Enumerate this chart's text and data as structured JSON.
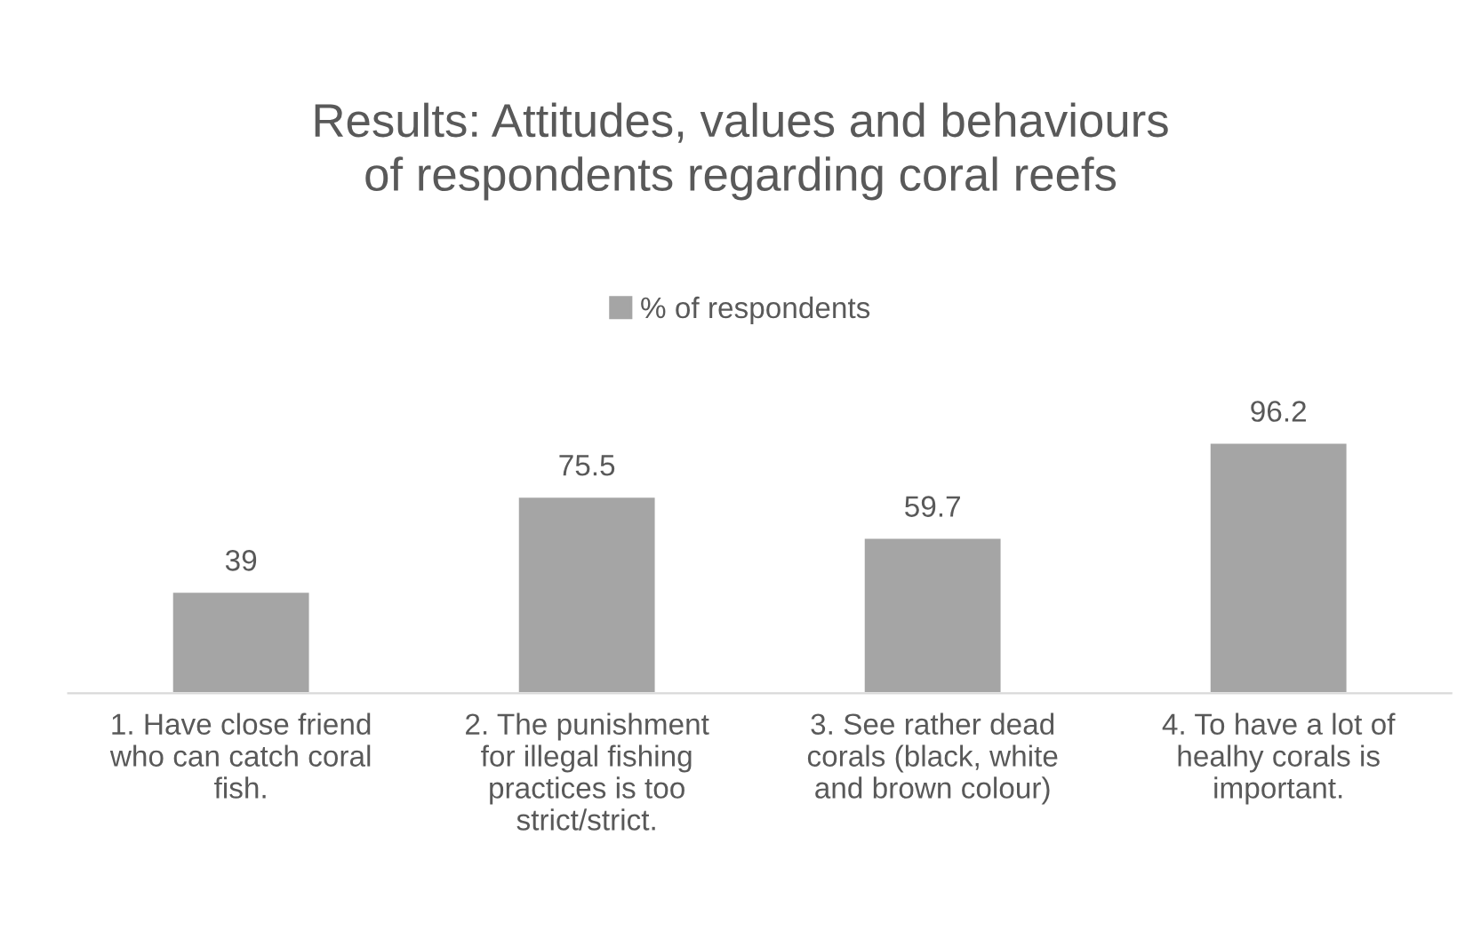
{
  "chart_data": {
    "type": "bar",
    "title": "Results: Attitudes, values and behaviours of respondents regarding coral reefs",
    "categories": [
      "1. Have close friend who can catch coral fish.",
      "2. The punishment for illegal fishing practices is too strict/strict.",
      "3. See rather dead corals (black, white and brown colour)",
      "4. To have a lot of healhy corals is important."
    ],
    "series": [
      {
        "name": "% of respondents",
        "color": "#a5a5a5",
        "values": [
          39,
          75.5,
          59.7,
          96.2
        ]
      }
    ],
    "data_labels": true,
    "legend": "top",
    "grid": false,
    "tick_labels": "x"
  }
}
